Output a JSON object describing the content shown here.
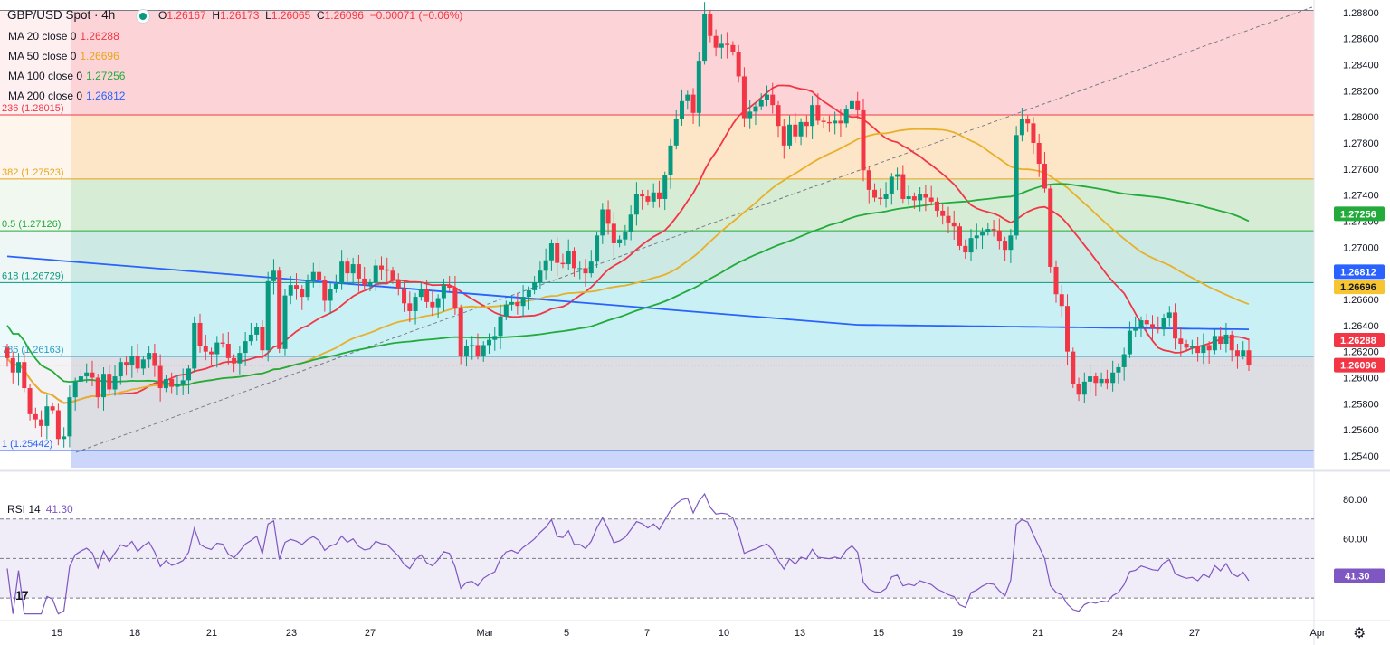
{
  "header": {
    "symbol": "GBP/USD Spot · 4h",
    "open_label": "O",
    "open": "1.26167",
    "high_label": "H",
    "high": "1.26173",
    "low_label": "L",
    "low": "1.26065",
    "close_label": "C",
    "close": "1.26096",
    "change": "−0.00071 (−0.06%)"
  },
  "moving_averages": [
    {
      "label": "MA 20 close 0",
      "value": "1.26288",
      "color": "#f23645"
    },
    {
      "label": "MA 50 close 0",
      "value": "1.26696",
      "color": "#e8b02a"
    },
    {
      "label": "MA 100 close 0",
      "value": "1.27256",
      "color": "#22ab3b"
    },
    {
      "label": "MA 200 close 0",
      "value": "1.26812",
      "color": "#2962ff"
    }
  ],
  "rsi": {
    "label": "RSI 14",
    "value": "41.30",
    "color": "#7e57c2"
  },
  "logo_text": "17",
  "settings_icon": "gear-icon",
  "chart_data": {
    "type": "candlestick",
    "title": "GBP/USD Spot · 4h",
    "ylim": [
      1.2531,
      1.2884
    ],
    "y_ticks": [
      1.254,
      1.256,
      1.258,
      1.26,
      1.262,
      1.264,
      1.266,
      1.268,
      1.27,
      1.272,
      1.274,
      1.276,
      1.278,
      1.28,
      1.282,
      1.284,
      1.286,
      1.288
    ],
    "y_tick_labels": [
      "1.25400",
      "1.25600",
      "1.25800",
      "1.26000",
      "1.26200",
      "1.26400",
      "1.26600",
      "1.26800",
      "1.27000",
      "1.27200",
      "1.27400",
      "1.27600",
      "1.27800",
      "1.28000",
      "1.28200",
      "1.28400",
      "1.28600",
      "1.28800"
    ],
    "x_tick_labels": [
      "15",
      "18",
      "21",
      "23",
      "27",
      "Mar",
      "5",
      "7",
      "10",
      "13",
      "15",
      "19",
      "21",
      "24",
      "27",
      "Apr"
    ],
    "fib_levels": [
      {
        "ratio": 0,
        "label": "",
        "price": 1.28816,
        "color": "#787b86"
      },
      {
        "ratio": 0.236,
        "label": "236 (1.28015)",
        "price": 1.28015,
        "color": "#f23645"
      },
      {
        "ratio": 0.382,
        "label": "382 (1.27523)",
        "price": 1.27523,
        "color": "#e8a417"
      },
      {
        "ratio": 0.5,
        "label": "0.5 (1.27126)",
        "price": 1.27126,
        "color": "#22ab3b"
      },
      {
        "ratio": 0.618,
        "label": "618 (1.26729)",
        "price": 1.26729,
        "color": "#089981"
      },
      {
        "ratio": 0.786,
        "label": "786 (1.26163)",
        "price": 1.26163,
        "color": "#2a9ec8"
      },
      {
        "ratio": 1,
        "label": "1 (1.25442)",
        "price": 1.25442,
        "color": "#2962ff"
      }
    ],
    "fib_fills": [
      "#fcd4d7",
      "#fde6c8",
      "#d7ecd4",
      "#cde9e3",
      "#c9f0f4",
      "#dcdee3",
      "#ccd6fb"
    ],
    "last_price": 1.26096,
    "series_closes": [
      1.2615,
      1.2604,
      1.2612,
      1.2592,
      1.2572,
      1.2568,
      1.2563,
      1.2578,
      1.2575,
      1.2553,
      1.2555,
      1.2585,
      1.2597,
      1.2601,
      1.2604,
      1.26,
      1.2585,
      1.2603,
      1.2591,
      1.2601,
      1.2612,
      1.261,
      1.2617,
      1.2607,
      1.2614,
      1.2619,
      1.2609,
      1.2592,
      1.2599,
      1.2593,
      1.2595,
      1.2598,
      1.2607,
      1.2642,
      1.2624,
      1.262,
      1.2618,
      1.2627,
      1.2626,
      1.2615,
      1.2611,
      1.2619,
      1.2628,
      1.2633,
      1.2639,
      1.2621,
      1.2674,
      1.2682,
      1.2622,
      1.2663,
      1.2671,
      1.2668,
      1.2662,
      1.2674,
      1.2681,
      1.2675,
      1.2659,
      1.2668,
      1.2672,
      1.2689,
      1.268,
      1.2687,
      1.2676,
      1.2671,
      1.2673,
      1.2686,
      1.2683,
      1.2682,
      1.2675,
      1.2668,
      1.2657,
      1.2651,
      1.2662,
      1.2668,
      1.2658,
      1.2654,
      1.2661,
      1.2671,
      1.2669,
      1.2653,
      1.2617,
      1.2624,
      1.2625,
      1.2617,
      1.2625,
      1.2629,
      1.2632,
      1.2647,
      1.2656,
      1.2658,
      1.2655,
      1.2662,
      1.2667,
      1.2673,
      1.2682,
      1.269,
      1.2703,
      1.2688,
      1.2687,
      1.2697,
      1.2684,
      1.2684,
      1.268,
      1.2689,
      1.2709,
      1.2729,
      1.2718,
      1.2703,
      1.2706,
      1.2712,
      1.2725,
      1.2741,
      1.2739,
      1.2735,
      1.2742,
      1.2737,
      1.2755,
      1.2778,
      1.2798,
      1.2812,
      1.2817,
      1.2803,
      1.2843,
      1.2879,
      1.2862,
      1.2853,
      1.2856,
      1.2855,
      1.285,
      1.2831,
      1.2799,
      1.2804,
      1.2808,
      1.2813,
      1.2817,
      1.2809,
      1.2793,
      1.2778,
      1.2794,
      1.2785,
      1.2796,
      1.2793,
      1.2809,
      1.2797,
      1.2796,
      1.2795,
      1.2797,
      1.2795,
      1.2806,
      1.2812,
      1.2805,
      1.2759,
      1.2744,
      1.2738,
      1.2737,
      1.2741,
      1.2754,
      1.2756,
      1.2737,
      1.2739,
      1.2736,
      1.2741,
      1.2738,
      1.2735,
      1.2728,
      1.2724,
      1.2719,
      1.2716,
      1.2701,
      1.2696,
      1.2707,
      1.2709,
      1.2712,
      1.2714,
      1.2713,
      1.2705,
      1.2698,
      1.2709,
      1.2786,
      1.2798,
      1.2795,
      1.278,
      1.2764,
      1.2745,
      1.2685,
      1.2664,
      1.2655,
      1.262,
      1.2595,
      1.2587,
      1.2597,
      1.2601,
      1.2596,
      1.2599,
      1.2596,
      1.2604,
      1.2608,
      1.2618,
      1.2636,
      1.2638,
      1.2644,
      1.2641,
      1.2638,
      1.2637,
      1.2646,
      1.265,
      1.263,
      1.2626,
      1.2623,
      1.2624,
      1.2619,
      1.2625,
      1.2621,
      1.2632,
      1.2626,
      1.2633,
      1.2621,
      1.2617,
      1.2621,
      1.261
    ]
  }
}
